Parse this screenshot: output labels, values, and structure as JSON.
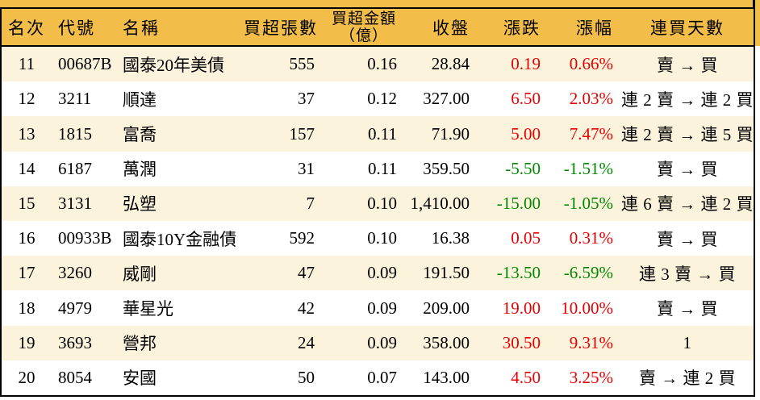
{
  "colors": {
    "header_bg": "#F2BD49",
    "row_bg": "#FFFFFF",
    "row_alt_bg": "#FCF3DC",
    "up_text": "#E80000",
    "down_text": "#008A00",
    "border": "#000000",
    "text": "#000000"
  },
  "chart_data": {
    "type": "table",
    "columns": [
      {
        "id": "rank",
        "label": "名次"
      },
      {
        "id": "code",
        "label": "代號"
      },
      {
        "id": "name",
        "label": "名稱"
      },
      {
        "id": "volume",
        "label": "買超張數"
      },
      {
        "id": "amount",
        "label": "買超金額",
        "sublabel": "（億）"
      },
      {
        "id": "close",
        "label": "收盤"
      },
      {
        "id": "change",
        "label": "漲跌"
      },
      {
        "id": "change_pct",
        "label": "漲幅"
      },
      {
        "id": "streak",
        "label": "連買天數"
      }
    ],
    "rows": [
      {
        "rank": "11",
        "code": "00687B",
        "name": "國泰20年美債",
        "volume": "555",
        "amount": "0.16",
        "close": "28.84",
        "change": "0.19",
        "change_pct": "0.66%",
        "streak": "賣 → 買",
        "direction": "up"
      },
      {
        "rank": "12",
        "code": "3211",
        "name": "順達",
        "volume": "37",
        "amount": "0.12",
        "close": "327.00",
        "change": "6.50",
        "change_pct": "2.03%",
        "streak": "連 2 賣 → 連 2 買",
        "direction": "up"
      },
      {
        "rank": "13",
        "code": "1815",
        "name": "富喬",
        "volume": "157",
        "amount": "0.11",
        "close": "71.90",
        "change": "5.00",
        "change_pct": "7.47%",
        "streak": "連 2 賣 → 連 5 買",
        "direction": "up"
      },
      {
        "rank": "14",
        "code": "6187",
        "name": "萬潤",
        "volume": "31",
        "amount": "0.11",
        "close": "359.50",
        "change": "-5.50",
        "change_pct": "-1.51%",
        "streak": "賣 → 買",
        "direction": "down"
      },
      {
        "rank": "15",
        "code": "3131",
        "name": "弘塑",
        "volume": "7",
        "amount": "0.10",
        "close": "1,410.00",
        "change": "-15.00",
        "change_pct": "-1.05%",
        "streak": "連 6 賣 → 連 2 買",
        "direction": "down"
      },
      {
        "rank": "16",
        "code": "00933B",
        "name": "國泰10Y金融債",
        "volume": "592",
        "amount": "0.10",
        "close": "16.38",
        "change": "0.05",
        "change_pct": "0.31%",
        "streak": "賣 → 買",
        "direction": "up"
      },
      {
        "rank": "17",
        "code": "3260",
        "name": "威剛",
        "volume": "47",
        "amount": "0.09",
        "close": "191.50",
        "change": "-13.50",
        "change_pct": "-6.59%",
        "streak": "連 3 賣 → 買",
        "direction": "down"
      },
      {
        "rank": "18",
        "code": "4979",
        "name": "華星光",
        "volume": "42",
        "amount": "0.09",
        "close": "209.00",
        "change": "19.00",
        "change_pct": "10.00%",
        "streak": "賣 → 買",
        "direction": "up"
      },
      {
        "rank": "19",
        "code": "3693",
        "name": "營邦",
        "volume": "24",
        "amount": "0.09",
        "close": "358.00",
        "change": "30.50",
        "change_pct": "9.31%",
        "streak": "1",
        "direction": "up"
      },
      {
        "rank": "20",
        "code": "8054",
        "name": "安國",
        "volume": "50",
        "amount": "0.07",
        "close": "143.00",
        "change": "4.50",
        "change_pct": "3.25%",
        "streak": "賣 → 連 2 買",
        "direction": "up"
      }
    ]
  }
}
